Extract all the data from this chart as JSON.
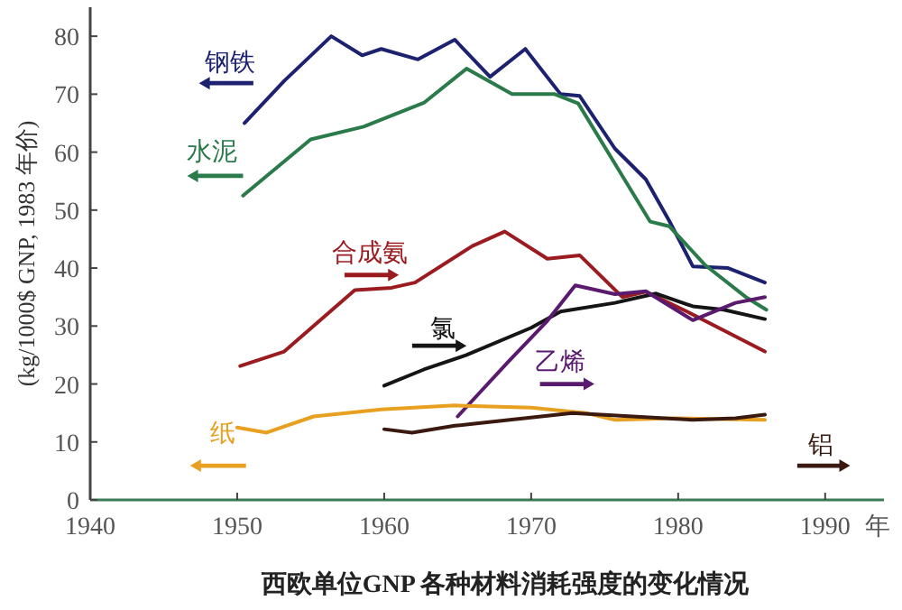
{
  "chart_data": {
    "type": "line",
    "title": "西欧单位GNP 各种材料消耗强度的变化情况",
    "xlabel": "年",
    "ylabel": "(kg/1000$ GNP, 1983 年价)",
    "xlim": [
      1940,
      1994
    ],
    "ylim": [
      0,
      85
    ],
    "xticks": [
      1940,
      1950,
      1960,
      1970,
      1980,
      1990
    ],
    "yticks": [
      0,
      10,
      20,
      30,
      40,
      50,
      60,
      70,
      80
    ],
    "grid": false,
    "legend": false,
    "marker": "none",
    "line_style": "solid",
    "series": [
      {
        "name": "钢铁",
        "color": "#1c2270",
        "x": [
          1950.5,
          1953.2,
          1956.4,
          1958.5,
          1959.8,
          1962.3,
          1964.8,
          1967.2,
          1969.6,
          1972,
          1973.3,
          1975.7,
          1977.8,
          1979.4,
          1981,
          1983.4,
          1985.9
        ],
        "values": [
          65,
          72.3,
          80,
          76.7,
          77.8,
          76,
          79.4,
          73,
          77.8,
          70,
          69.7,
          60.6,
          55.3,
          48.1,
          40.3,
          40,
          37.5
        ]
      },
      {
        "name": "水泥",
        "color": "#2a7a4a",
        "x": [
          1950.4,
          1955,
          1958.6,
          1962.7,
          1965.6,
          1968.7,
          1971.6,
          1973.2,
          1975.7,
          1978.1,
          1979.4,
          1981.8,
          1984.6,
          1986
        ],
        "values": [
          52.5,
          62.2,
          64.4,
          68.5,
          74.4,
          70,
          70,
          68.4,
          58,
          48,
          47.2,
          40.6,
          35,
          32.8
        ]
      },
      {
        "name": "合成氨",
        "color": "#9b1c20",
        "x": [
          1950.2,
          1953.2,
          1958,
          1960.5,
          1962.1,
          1966,
          1968.2,
          1971.1,
          1973.3,
          1976.2,
          1977.8,
          1980.6,
          1985.9
        ],
        "values": [
          23.1,
          25.6,
          36.2,
          36.6,
          37.5,
          43.8,
          46.3,
          41.6,
          42.2,
          35,
          35.9,
          32.5,
          25.6
        ]
      },
      {
        "name": "氯",
        "color": "#151515",
        "x": [
          1960,
          1962.7,
          1965.6,
          1970,
          1972,
          1975.7,
          1978.5,
          1981,
          1983.1,
          1985.9
        ],
        "values": [
          19.7,
          22.5,
          25,
          29.7,
          32.5,
          34,
          35.6,
          33.4,
          32.8,
          31.2
        ]
      },
      {
        "name": "乙烯",
        "color": "#5a1a6e",
        "x": [
          1965,
          1968.5,
          1971.1,
          1973,
          1975.7,
          1977.8,
          1981,
          1983.9,
          1985.9
        ],
        "values": [
          14.4,
          24,
          30.9,
          37,
          35.5,
          36,
          31,
          34,
          35
        ]
      },
      {
        "name": "纸",
        "color": "#e8a020",
        "x": [
          1950,
          1952,
          1955.2,
          1959.8,
          1964.8,
          1970,
          1973.7,
          1975.7,
          1979.8,
          1985.9
        ],
        "values": [
          12.5,
          11.6,
          14.4,
          15.6,
          16.3,
          15.9,
          15,
          13.8,
          14.1,
          13.8
        ]
      },
      {
        "name": "铝",
        "color": "#3a1a10",
        "x": [
          1960,
          1961.9,
          1964.8,
          1966,
          1972.8,
          1976.9,
          1981,
          1983.9,
          1985.9
        ],
        "values": [
          12.2,
          11.6,
          12.8,
          13.1,
          15,
          14.4,
          13.8,
          14.1,
          14.7
        ]
      }
    ]
  }
}
